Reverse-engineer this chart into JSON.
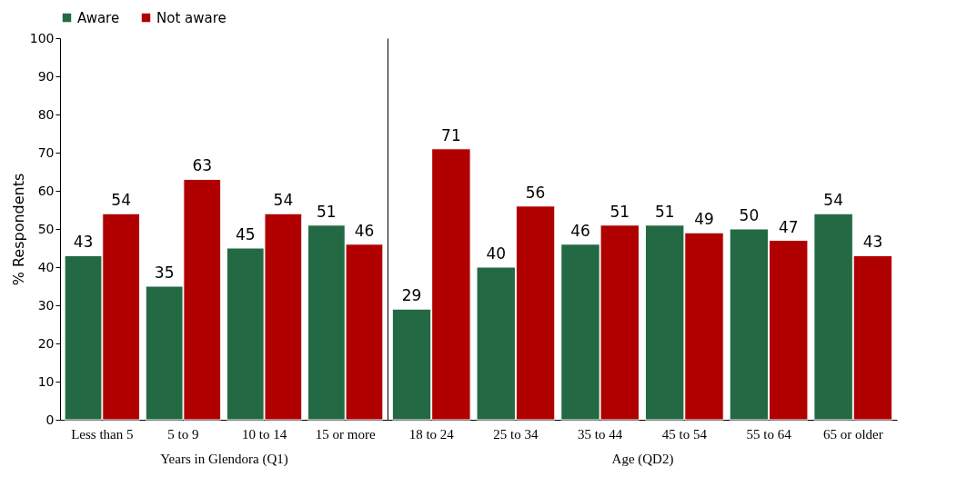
{
  "chart_data": [
    {
      "type": "bar",
      "xlabel": "Years in Glendora (Q1)",
      "ylabel": "% Respondents",
      "categories": [
        "Less than 5",
        "5 to 9",
        "10 to 14",
        "15 or more"
      ],
      "ylim": [
        0,
        100
      ],
      "yticks": [
        0,
        10,
        20,
        30,
        40,
        50,
        60,
        70,
        80,
        90,
        100
      ],
      "legend": "top left",
      "data_labels": true,
      "series": [
        {
          "name": "Aware",
          "color": "#236a44",
          "values": [
            43,
            35,
            45,
            51
          ]
        },
        {
          "name": "Not aware",
          "color": "#b00000",
          "values": [
            54,
            63,
            54,
            46
          ]
        }
      ]
    },
    {
      "type": "bar",
      "xlabel": "Age (QD2)",
      "categories": [
        "18 to 24",
        "25 to 34",
        "35 to 44",
        "45 to 54",
        "55 to 64",
        "65 or older"
      ],
      "ylim": [
        0,
        100
      ],
      "yticks": [
        0,
        10,
        20,
        30,
        40,
        50,
        60,
        70,
        80,
        90,
        100
      ],
      "tick_labels": "x",
      "data_labels": true,
      "series": [
        {
          "color": "#236a44",
          "values": [
            29,
            40,
            46,
            51,
            50,
            54
          ]
        },
        {
          "color": "#b00000",
          "values": [
            71,
            56,
            51,
            49,
            47,
            43
          ]
        }
      ]
    }
  ]
}
